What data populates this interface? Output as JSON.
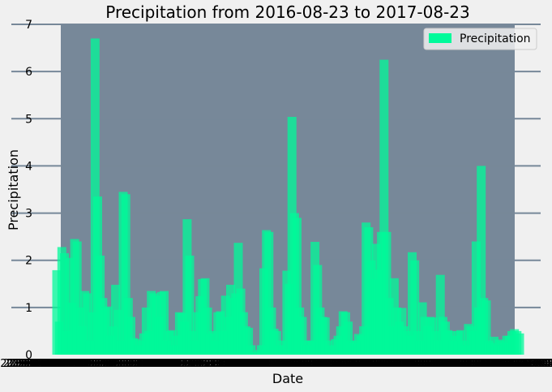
{
  "chart_data": {
    "type": "bar",
    "title": "Precipitation from 2016-08-23 to 2017-08-23",
    "xlabel": "Date",
    "ylabel": "Precipitation",
    "ylim": [
      0,
      7
    ],
    "yticks": [
      "0",
      "1",
      "2",
      "3",
      "4",
      "5",
      "6",
      "7"
    ],
    "legend": {
      "label": "Precipitation",
      "location": "top-right"
    },
    "grid": "horizontal",
    "colors": {
      "bar": "#00FA9A",
      "plot_background": "#778899",
      "figure_background": "#F0F0F0",
      "grid": "#778899"
    },
    "x_start": "2016-08-23",
    "x_end": "2017-08-23",
    "series": [
      {
        "name": "Precipitation",
        "values": [
          1.79,
          0.7,
          2.28,
          2.15,
          0.5,
          2.05,
          1.1,
          2.45,
          2.4,
          1.0,
          0.6,
          1.35,
          1.3,
          0.3,
          0.9,
          6.7,
          3.35,
          2.1,
          1.2,
          1.0,
          1.02,
          0.4,
          0.6,
          1.48,
          0.95,
          0.3,
          3.45,
          3.4,
          1.2,
          0.8,
          0.35,
          0.33,
          0.2,
          0.3,
          0.45,
          1.0,
          0.5,
          1.35,
          1.3,
          1.25,
          0.8,
          1.33,
          1.35,
          0.3,
          0.5,
          0.52,
          0.2,
          0.4,
          0.9,
          0.88,
          0.7,
          2.87,
          2.1,
          0.5,
          0.3,
          0.9,
          1.24,
          1.6,
          1.62,
          1.0,
          0.45,
          0.5,
          0.3,
          0.9,
          0.92,
          0.5,
          1.25,
          0.8,
          1.48,
          1.2,
          1.3,
          2.37,
          1.4,
          0.9,
          0.6,
          0.57,
          0.2,
          0.02,
          0.05,
          0.1,
          0.2,
          1.83,
          2.64,
          2.6,
          1.0,
          0.55,
          0.5,
          0.2,
          0.3,
          0.1,
          1.78,
          1.5,
          5.04,
          3.0,
          2.9,
          1.0,
          0.8,
          0.3,
          0.2,
          0.3,
          0.3,
          2.39,
          1.9,
          1.0,
          0.8,
          0.79,
          0.3,
          0.2,
          0.1,
          0.33,
          0.4,
          0.6,
          0.92,
          0.9,
          0.7,
          0.3,
          0.25,
          0.3,
          0.44,
          0.4,
          0.6,
          2.8,
          2.7,
          2.0,
          1.6,
          2.35,
          1.8,
          2.6,
          6.25,
          2.6,
          1.2,
          0.6,
          1.62,
          1.0,
          0.7,
          0.99,
          0.6,
          0.5,
          0.4,
          2.17,
          2.0,
          0.5,
          0.3,
          1.11,
          0.8,
          0.6,
          0.8,
          0.79,
          0.5,
          0.3,
          1.69,
          0.8,
          0.7,
          0.52,
          0.5,
          0.3,
          0.4,
          0.5,
          0.52,
          0.3,
          0.2,
          0.65,
          0.6,
          0.5,
          2.4,
          1.0,
          4.0,
          1.2,
          1.15,
          0.3,
          0.25,
          0.38,
          0.2,
          0.32,
          0.3,
          0.25,
          0.4,
          0.4,
          0.5,
          0.54,
          0.5,
          0.45
        ]
      }
    ]
  }
}
